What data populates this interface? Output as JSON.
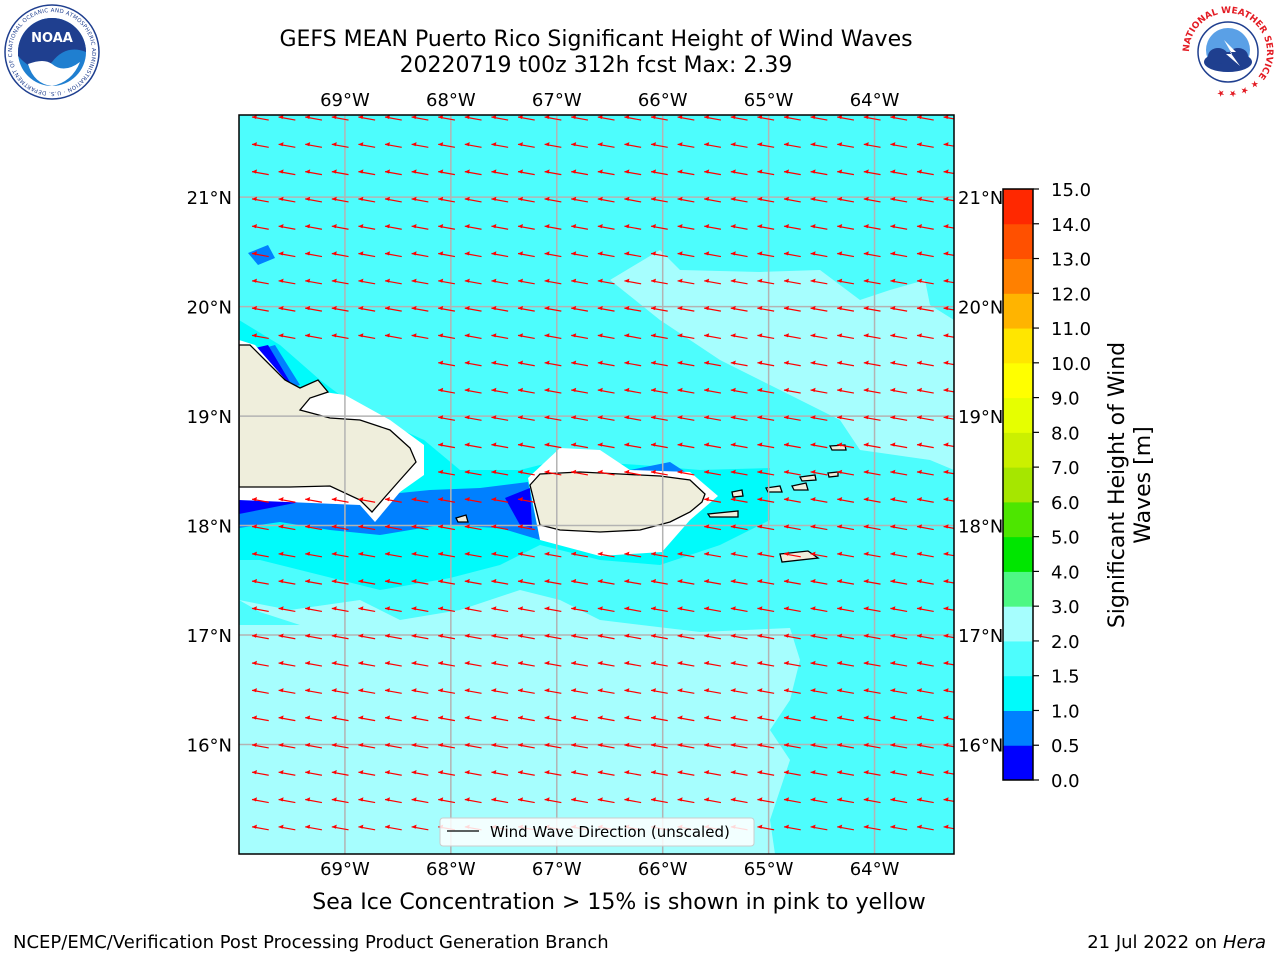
{
  "title": {
    "line1": "GEFS MEAN Puerto Rico Significant Height of Wind Waves",
    "line2": "20220719 t00z 312h fcst   Max: 2.39"
  },
  "map": {
    "lon_labels": [
      "69°W",
      "68°W",
      "67°W",
      "66°W",
      "65°W",
      "64°W"
    ],
    "lat_labels": [
      "21°N",
      "20°N",
      "19°N",
      "18°N",
      "17°N",
      "16°N"
    ],
    "lon_range": [
      -70.0,
      -63.25
    ],
    "lat_range": [
      15.0,
      21.75
    ],
    "max_value": 2.39,
    "wave_direction": "toward west-southwest",
    "colors": {
      "ocean_main": "#4dfdfd",
      "ocean_light": "#a6fefe",
      "ocean_cyan": "#00fbfb",
      "ocean_mid": "#0080ff",
      "ocean_deep": "#0000ff",
      "land": "#efeedc",
      "arrow": "#ff0000",
      "grid": "#b3b3b3"
    }
  },
  "legend": {
    "label": "Wind Wave Direction (unscaled)"
  },
  "colorbar": {
    "label_line1": "Significant Height of Wind",
    "label_line2": "Waves [m]",
    "ticks": [
      "0.0",
      "0.5",
      "1.0",
      "1.5",
      "2.0",
      "3.0",
      "4.0",
      "5.0",
      "6.0",
      "7.0",
      "8.0",
      "9.0",
      "10.0",
      "11.0",
      "12.0",
      "13.0",
      "14.0",
      "15.0"
    ],
    "colors": [
      "#0000ff",
      "#0080ff",
      "#00fbfb",
      "#4dfdfd",
      "#a6fefe",
      "#4df884",
      "#00e600",
      "#4de600",
      "#a6e600",
      "#cbf000",
      "#e6ff00",
      "#ffff00",
      "#ffe600",
      "#ffb400",
      "#ff8000",
      "#ff5000",
      "#ff2800"
    ]
  },
  "caption": "Sea Ice Concentration > 15% is shown in pink to yellow",
  "footer": {
    "left": "NCEP/EMC/Verification Post Processing Product Generation Branch",
    "right_prefix": "21 Jul 2022 on ",
    "right_host": "Hera"
  },
  "logos": {
    "left": "NOAA",
    "right": "NATIONAL WEATHER SERVICE"
  }
}
